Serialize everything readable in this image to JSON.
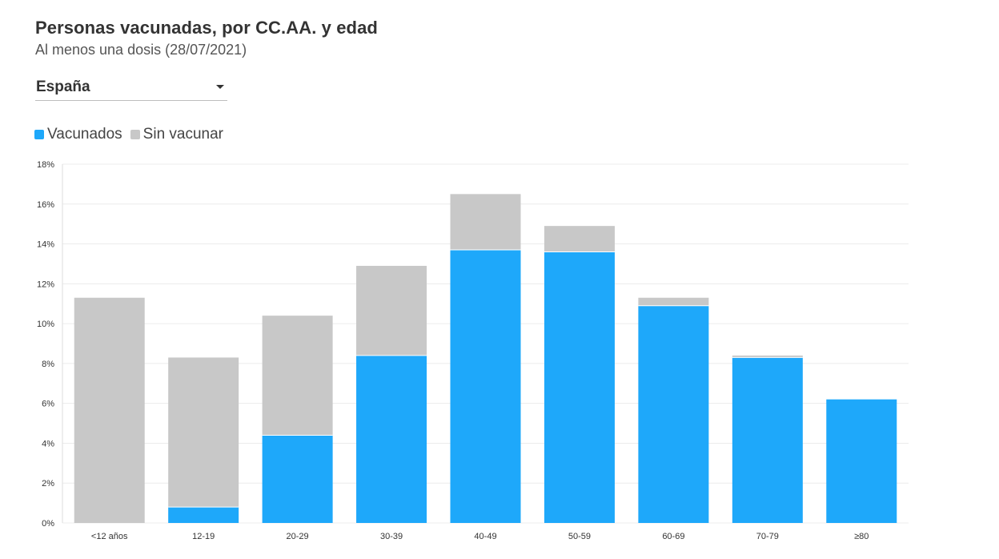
{
  "header": {
    "title": "Personas vacunadas, por CC.AA. y edad",
    "subtitle": "Al menos una dosis (28/07/2021)"
  },
  "filter": {
    "selected": "España",
    "icon": "caret-down-icon"
  },
  "colors": {
    "vaccinated": "#1ea8fa",
    "unvaccinated": "#c8c8c8",
    "grid": "#ececec",
    "text": "#333333"
  },
  "chart_data": {
    "type": "bar",
    "stacked": true,
    "categories": [
      "<12 años",
      "12-19",
      "20-29",
      "30-39",
      "40-49",
      "50-59",
      "60-69",
      "70-79",
      "≥80"
    ],
    "series": [
      {
        "name": "Vacunados",
        "values": [
          0,
          0.8,
          4.4,
          8.4,
          13.7,
          13.6,
          10.9,
          8.3,
          6.2
        ]
      },
      {
        "name": "Sin vacunar",
        "values": [
          11.3,
          7.5,
          6.0,
          4.5,
          2.8,
          1.3,
          0.4,
          0.1,
          0
        ]
      }
    ],
    "ylim": [
      0,
      18
    ],
    "yticks": [
      0,
      2,
      4,
      6,
      8,
      10,
      12,
      14,
      16,
      18
    ],
    "ytick_suffix": "%",
    "grid": true,
    "legend": "top-left"
  }
}
